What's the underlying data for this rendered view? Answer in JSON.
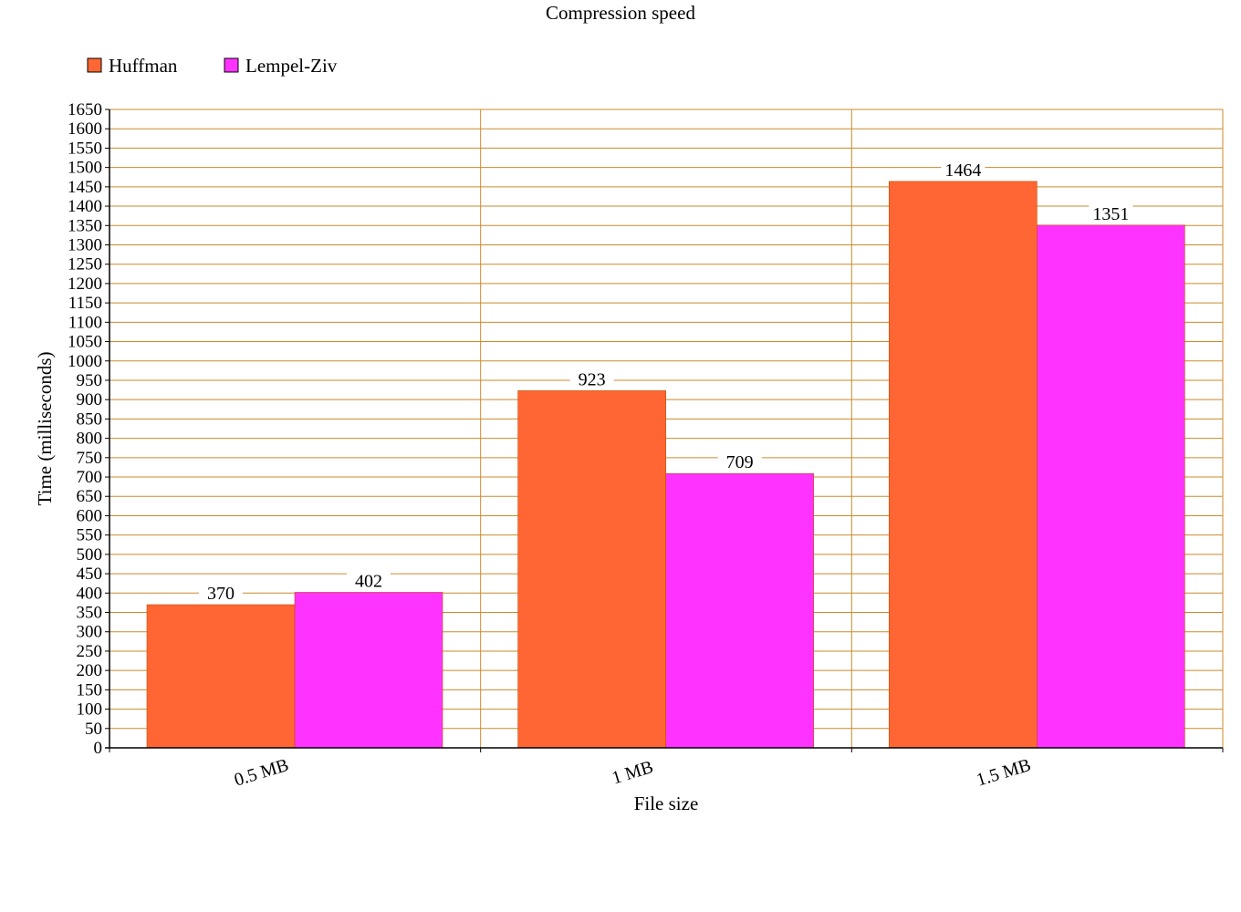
{
  "chart_data": {
    "type": "bar",
    "title": "Compression speed",
    "xlabel": "File size",
    "ylabel": "Time (milliseconds)",
    "categories": [
      "0.5 MB",
      "1 MB",
      "1.5 MB"
    ],
    "series": [
      {
        "name": "Huffman",
        "values": [
          370,
          923,
          1464
        ],
        "color": "#ff6633"
      },
      {
        "name": "Lempel-Ziv",
        "values": [
          402,
          709,
          1351
        ],
        "color": "#ff33ff"
      }
    ],
    "ylim": [
      0,
      1650
    ],
    "ytick_step": 50,
    "grid": true,
    "grid_color": "#cc8a2e",
    "legend_position": "top-left",
    "data_labels": true
  }
}
